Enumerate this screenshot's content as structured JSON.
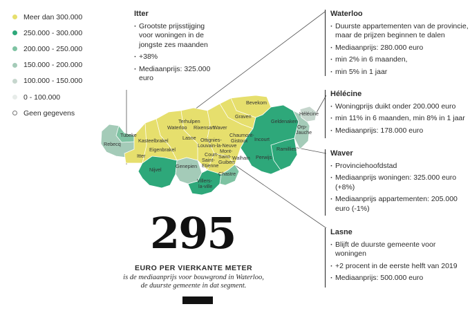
{
  "colors": {
    "yellow": "#e6df6d",
    "green_dark": "#2ea87a",
    "green_mid": "#7ec3a2",
    "green_light": "#a4cbb8",
    "grey_light": "#c6d6cd",
    "grey_pale": "#e7ece9"
  },
  "legend": [
    {
      "label": "Meer dan 300.000",
      "color": "#e6df6d"
    },
    {
      "label": "250.000 - 300.000",
      "color": "#2ea87a"
    },
    {
      "label": "200.000 - 250.000",
      "color": "#7ec3a2"
    },
    {
      "label": "150.000 - 200.000",
      "color": "#a4cbb8"
    },
    {
      "label": "100.000 - 150.000",
      "color": "#c6d6cd"
    },
    {
      "label": "0 - 100.000",
      "color": "#e7ece9"
    },
    {
      "label": "Geen gegevens",
      "color": "#ffffff"
    }
  ],
  "callouts": {
    "itter": {
      "title": "Itter",
      "items": [
        "Grootste prijsstijging voor woningen in de jongste zes maanden",
        "+38%",
        "Mediaanprijs: 325.000 euro"
      ]
    },
    "waterloo": {
      "title": "Waterloo",
      "items": [
        "Duurste appartementen van de provincie, maar de prijzen beginnen te dalen",
        "Mediaanprijs: 280.000 euro",
        "min 2% in 6 maanden,",
        "min 5% in 1 jaar"
      ]
    },
    "helecine": {
      "title": "Hélécine",
      "items": [
        "Woningprijs duikt onder 200.000 euro",
        "min 11% in 6 maanden, min 8% in 1 jaar",
        "Mediaanprijs: 178.000 euro"
      ]
    },
    "wavre": {
      "title": "Waver",
      "items": [
        "Provinciehoofdstad",
        "Mediaanprijs woningen: 325.000 euro (+8%)",
        "Mediaanprijs appartementen: 205.000 euro (-1%)"
      ]
    },
    "lasne": {
      "title": "Lasne",
      "items": [
        "Blijft de duurste gemeente voor woningen",
        "+2 procent in de eerste helft van 2019",
        "Mediaanprijs: 500.000 euro"
      ]
    }
  },
  "municipalities": [
    "Tubeke",
    "Rebecq",
    "Kasteelbrakel",
    "Eigenbrakel",
    "Itter",
    "Nijvel",
    "Genepien",
    "Terhulpen",
    "Waterloo",
    "Lasne",
    "Rixensart",
    "Waver",
    "Graven",
    "Bevekom",
    "Chaumont-Gistoux",
    "Ottignies-Louvain-la-Neuve",
    "Court-Saint-Etienne",
    "Mont-Saint-Guibert",
    "Walhain",
    "Villers-la-ville",
    "Chastre",
    "Incourt",
    "Perwijs",
    "Geldenaken",
    "Ramillies",
    "Orp-Jauche",
    "Hélécine"
  ],
  "headline": {
    "number": "295",
    "subhead": "EURO PER VIERKANTE METER",
    "caption_line1": "is de mediaanprijs voor bouwgrond in Waterloo,",
    "caption_line2": "de duurste gemeente in dat segment."
  }
}
